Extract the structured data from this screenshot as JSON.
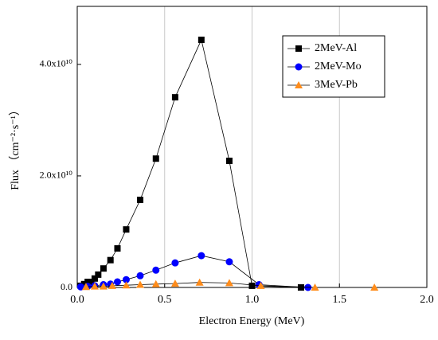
{
  "chart_data": {
    "type": "line",
    "xlabel": "Electron Energy (MeV)",
    "ylabel": "Flux （cm⁻²·s⁻¹）",
    "xlim": [
      0,
      2.0
    ],
    "ylim": [
      0,
      50400000000
    ],
    "xticks": [
      {
        "value": 0,
        "label": "0.0"
      },
      {
        "value": 0.5,
        "label": "0.5"
      },
      {
        "value": 1.0,
        "label": "1.0"
      },
      {
        "value": 1.5,
        "label": "1.5"
      },
      {
        "value": 2.0,
        "label": "2.0"
      }
    ],
    "yticks": [
      {
        "value": 0,
        "label": "0.0"
      },
      {
        "value": 20000000000,
        "label": "2.0x10¹⁰"
      },
      {
        "value": 40000000000,
        "label": "4.0x10¹⁰"
      }
    ],
    "grid": true,
    "legend": "upper right",
    "series": [
      {
        "name": "2MeV-Al",
        "color": "#000000",
        "marker": "square",
        "x": [
          0.02,
          0.04,
          0.06,
          0.08,
          0.1,
          0.12,
          0.15,
          0.19,
          0.23,
          0.28,
          0.36,
          0.45,
          0.56,
          0.71,
          0.87,
          1.0,
          1.28
        ],
        "values": [
          300000000,
          600000000,
          1000000000,
          1000000000,
          1600000000,
          2300000000,
          3400000000,
          4900000000,
          7000000000,
          10400000000,
          15700000000,
          23100000000,
          34100000000,
          44400000000,
          22700000000,
          300000000,
          0
        ]
      },
      {
        "name": "2MeV-Mo",
        "color": "#0000ff",
        "marker": "circle",
        "x": [
          0.02,
          0.06,
          0.1,
          0.15,
          0.19,
          0.23,
          0.28,
          0.36,
          0.45,
          0.56,
          0.71,
          0.87,
          1.04,
          1.32
        ],
        "values": [
          100000000,
          200000000,
          300000000,
          500000000,
          600000000,
          1000000000,
          1400000000,
          2100000000,
          3100000000,
          4400000000,
          5700000000,
          4600000000,
          500000000,
          0
        ]
      },
      {
        "name": "3MeV-Pb",
        "color": "#ff8c1a",
        "marker": "triangle",
        "x": [
          0.05,
          0.1,
          0.15,
          0.2,
          0.28,
          0.36,
          0.45,
          0.56,
          0.7,
          0.87,
          1.05,
          1.36,
          1.7
        ],
        "values": [
          100000000,
          200000000,
          200000000,
          300000000,
          400000000,
          500000000,
          600000000,
          700000000,
          900000000,
          800000000,
          300000000,
          0,
          0
        ]
      }
    ]
  }
}
